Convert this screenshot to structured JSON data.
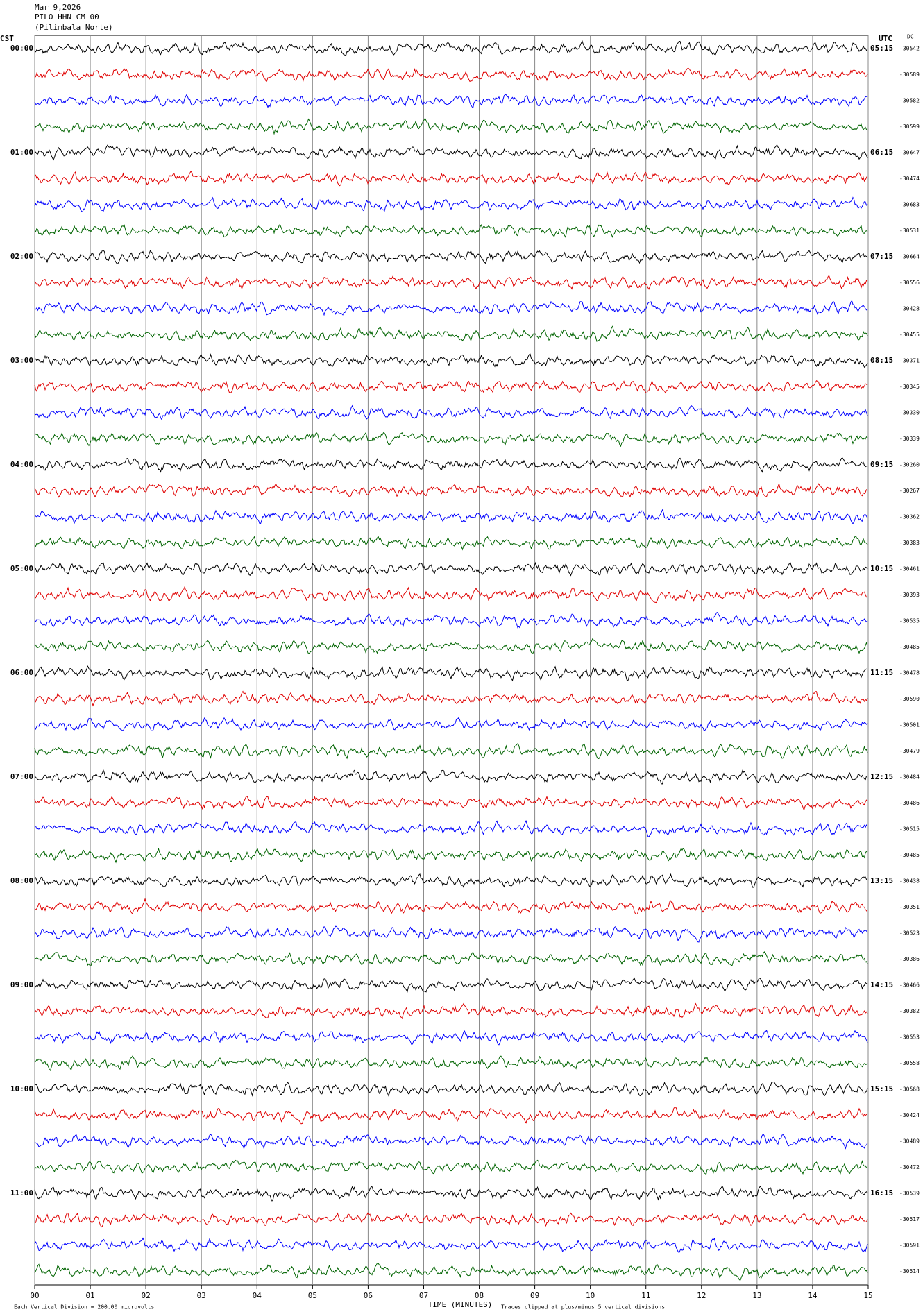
{
  "header": {
    "date": "Mar 9,2026",
    "station": "PILO HHN CM 00",
    "location": "(Pilimbala Norte)"
  },
  "left_zone": "CST",
  "right_zone": "UTC",
  "dc_label": "DC",
  "left_times": [
    "00:00",
    "01:00",
    "02:00",
    "03:00",
    "04:00",
    "05:00",
    "06:00",
    "07:00",
    "08:00",
    "09:00",
    "10:00",
    "11:00"
  ],
  "right_times": [
    "05:15",
    "06:15",
    "07:15",
    "08:15",
    "09:15",
    "10:15",
    "11:15",
    "12:15",
    "13:15",
    "14:15",
    "15:15",
    "16:15"
  ],
  "dc_values": [
    -30542,
    -30589,
    -30582,
    -30599,
    -30647,
    -30474,
    -30683,
    -30531,
    -30664,
    -30556,
    -30428,
    -30455,
    -30371,
    -30345,
    -30330,
    -30339,
    -30260,
    -30267,
    -30362,
    -30383,
    -30461,
    -30393,
    -30535,
    -30485,
    -30478,
    -30590,
    -30501,
    -30479,
    -30484,
    -30486,
    -30515,
    -30485,
    -30438,
    -30351,
    -30523,
    -30386,
    -30466,
    -30382,
    -30553,
    -30558,
    -30568,
    -30424,
    -30489,
    -30472,
    -30539,
    -30517,
    -30591,
    -30514
  ],
  "x_ticks": [
    "00",
    "01",
    "02",
    "03",
    "04",
    "05",
    "06",
    "07",
    "08",
    "09",
    "10",
    "11",
    "12",
    "13",
    "14",
    "15"
  ],
  "x_axis_label": "TIME (MINUTES)",
  "footer": {
    "scale": "Each Vertical Division = 200.00 microvolts",
    "clip": "Traces clipped at plus/minus 5 vertical divisions"
  }
}
